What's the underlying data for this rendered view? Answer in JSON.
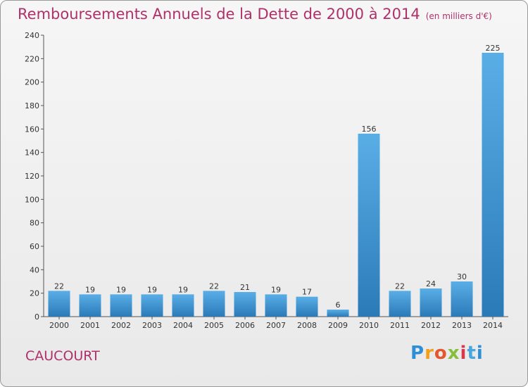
{
  "title": "Remboursements Annuels de la Dette de 2000 à 2014",
  "unit": "(en milliers d'€)",
  "commune": "CAUCOURT",
  "logo_text": "Proxiti",
  "colors": {
    "title": "#b0306a",
    "bar_light": "#5aaee6",
    "bar_dark": "#2a7ab8"
  },
  "chart_data": {
    "type": "bar",
    "categories": [
      "2000",
      "2001",
      "2002",
      "2003",
      "2004",
      "2005",
      "2006",
      "2007",
      "2008",
      "2009",
      "2010",
      "2011",
      "2012",
      "2013",
      "2014"
    ],
    "values": [
      22,
      19,
      19,
      19,
      19,
      22,
      21,
      19,
      17,
      6,
      156,
      22,
      24,
      30,
      225
    ],
    "ylim": [
      0,
      240
    ],
    "yticks": [
      0,
      20,
      40,
      60,
      80,
      100,
      120,
      140,
      160,
      180,
      200,
      220,
      240
    ],
    "grid": false,
    "data_labels": true,
    "title": "Remboursements Annuels de la Dette de 2000 à 2014",
    "xlabel": "",
    "ylabel": ""
  }
}
